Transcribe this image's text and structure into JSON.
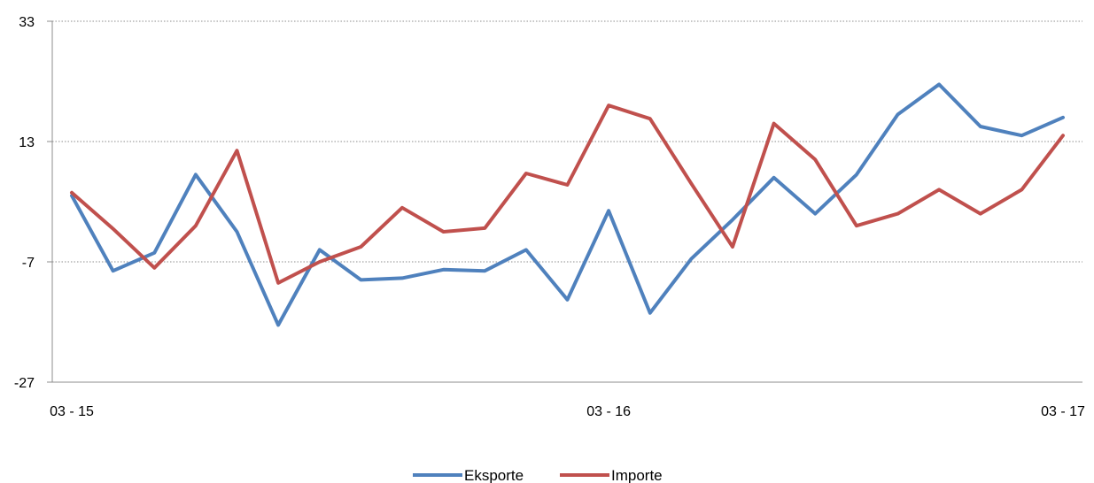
{
  "chart_data": {
    "type": "line",
    "title": "",
    "xlabel": "",
    "ylabel": "",
    "ylim": [
      -27,
      33
    ],
    "yticks": [
      33,
      13,
      -7,
      -27
    ],
    "ytick_labels": [
      "33",
      "13",
      "-7",
      "-27"
    ],
    "xtick_labels": [
      "03 - 15",
      "03 - 16",
      "03 - 17"
    ],
    "xtick_positions": [
      0,
      13,
      24
    ],
    "grid": true,
    "legend_position": "bottom",
    "series": [
      {
        "name": "Eksporte",
        "color": "#4f81bd",
        "values": [
          4,
          -8.5,
          -5.5,
          7.5,
          -2,
          -17.5,
          -5,
          -10,
          -9.7,
          -8.3,
          -8.5,
          -5,
          -13.3,
          1.5,
          -15.5,
          -6.5,
          0,
          7,
          1,
          7.5,
          17.5,
          22.5,
          15.5,
          14,
          17
        ]
      },
      {
        "name": "Importe",
        "color": "#c0504d",
        "values": [
          4.5,
          -1.5,
          -8,
          -1,
          11.5,
          -10.5,
          -7,
          -4.5,
          2,
          -2,
          -1.4,
          7.7,
          5.8,
          19,
          16.8,
          6,
          -4.5,
          16,
          10,
          -1,
          1,
          5,
          1,
          5,
          14
        ]
      }
    ]
  }
}
